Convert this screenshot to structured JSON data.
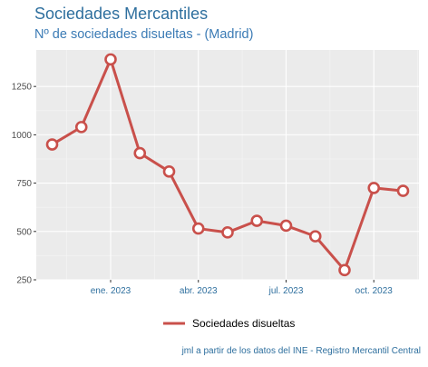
{
  "title": "Sociedades Mercantiles",
  "subtitle": "Nº de sociedades disueltas - (Madrid)",
  "caption": "jml a partir de los datos del INE - Registro Mercantil Central",
  "chart_data": {
    "type": "line",
    "x": [
      "2022-11",
      "2022-12",
      "2023-01",
      "2023-02",
      "2023-03",
      "2023-04",
      "2023-05",
      "2023-06",
      "2023-07",
      "2023-08",
      "2023-09",
      "2023-10",
      "2023-11"
    ],
    "series": [
      {
        "name": "Sociedades disueltas",
        "values": [
          950,
          1040,
          1390,
          905,
          810,
          515,
          495,
          555,
          530,
          475,
          300,
          725,
          710
        ],
        "color": "#c9504b"
      }
    ],
    "xticks": [
      "ene. 2023",
      "abr. 2023",
      "jul. 2023",
      "oct. 2023"
    ],
    "xtick_positions": [
      "2023-01",
      "2023-04",
      "2023-07",
      "2023-10"
    ],
    "yticks": [
      250,
      500,
      750,
      1000,
      1250
    ],
    "ylim": [
      250,
      1420
    ],
    "grid": true,
    "legend_position": "bottom",
    "background": "#ebebeb"
  }
}
